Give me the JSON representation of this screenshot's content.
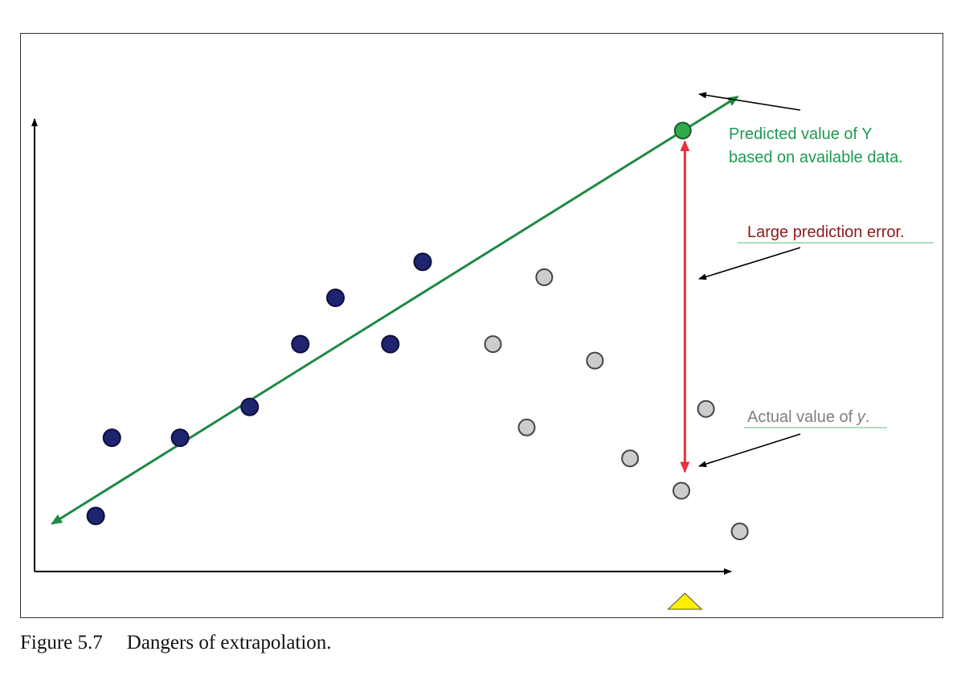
{
  "chart_data": {
    "type": "scatter",
    "title": "",
    "xlabel": "",
    "ylabel": "",
    "grid": false,
    "axis_ticks": "none",
    "xlim": [
      0,
      10
    ],
    "ylim": [
      0,
      10
    ],
    "series": [
      {
        "role": "available_data",
        "color": "#1f2470",
        "points": [
          {
            "x": 0.87,
            "y": 1.08
          },
          {
            "x": 1.1,
            "y": 2.6
          },
          {
            "x": 2.07,
            "y": 2.6
          },
          {
            "x": 3.06,
            "y": 3.2
          },
          {
            "x": 3.78,
            "y": 4.42
          },
          {
            "x": 4.28,
            "y": 5.32
          },
          {
            "x": 5.06,
            "y": 4.42
          },
          {
            "x": 5.52,
            "y": 6.02
          }
        ]
      },
      {
        "role": "actual_outside_range",
        "color": "#cccccc",
        "points": [
          {
            "x": 6.52,
            "y": 4.42
          },
          {
            "x": 7.0,
            "y": 2.8
          },
          {
            "x": 7.25,
            "y": 5.72
          },
          {
            "x": 7.97,
            "y": 4.1
          },
          {
            "x": 8.47,
            "y": 2.2
          },
          {
            "x": 9.2,
            "y": 1.57
          },
          {
            "x": 9.55,
            "y": 3.16
          },
          {
            "x": 10.03,
            "y": 0.78
          }
        ]
      }
    ],
    "regression_line": {
      "color": "#1e8a44",
      "from": {
        "x": 0.25,
        "y": 0.93
      },
      "to": {
        "x": 10.0,
        "y": 9.23
      }
    },
    "predicted_point": {
      "x": 9.22,
      "y": 8.57,
      "color": "#2eaa49"
    },
    "error_arrow": {
      "x": 9.25,
      "y_from": 8.45,
      "y_to": 1.85,
      "color": "#e8303c"
    },
    "x_marker": {
      "x": 9.25,
      "shape": "triangle",
      "color": "#ffee00"
    },
    "annotations": [
      {
        "line1": "Predicted value of Y",
        "line2": "based on available data.",
        "color": "#1e9a50"
      },
      {
        "text": "Large prediction error.",
        "color": "#8b1a1a"
      },
      {
        "text_before": "Actual value of ",
        "text_italic": "y",
        "text_after": ".",
        "color": "#808080"
      }
    ]
  },
  "caption": {
    "number": "Figure 5.7",
    "text": "Dangers of extrapolation."
  }
}
